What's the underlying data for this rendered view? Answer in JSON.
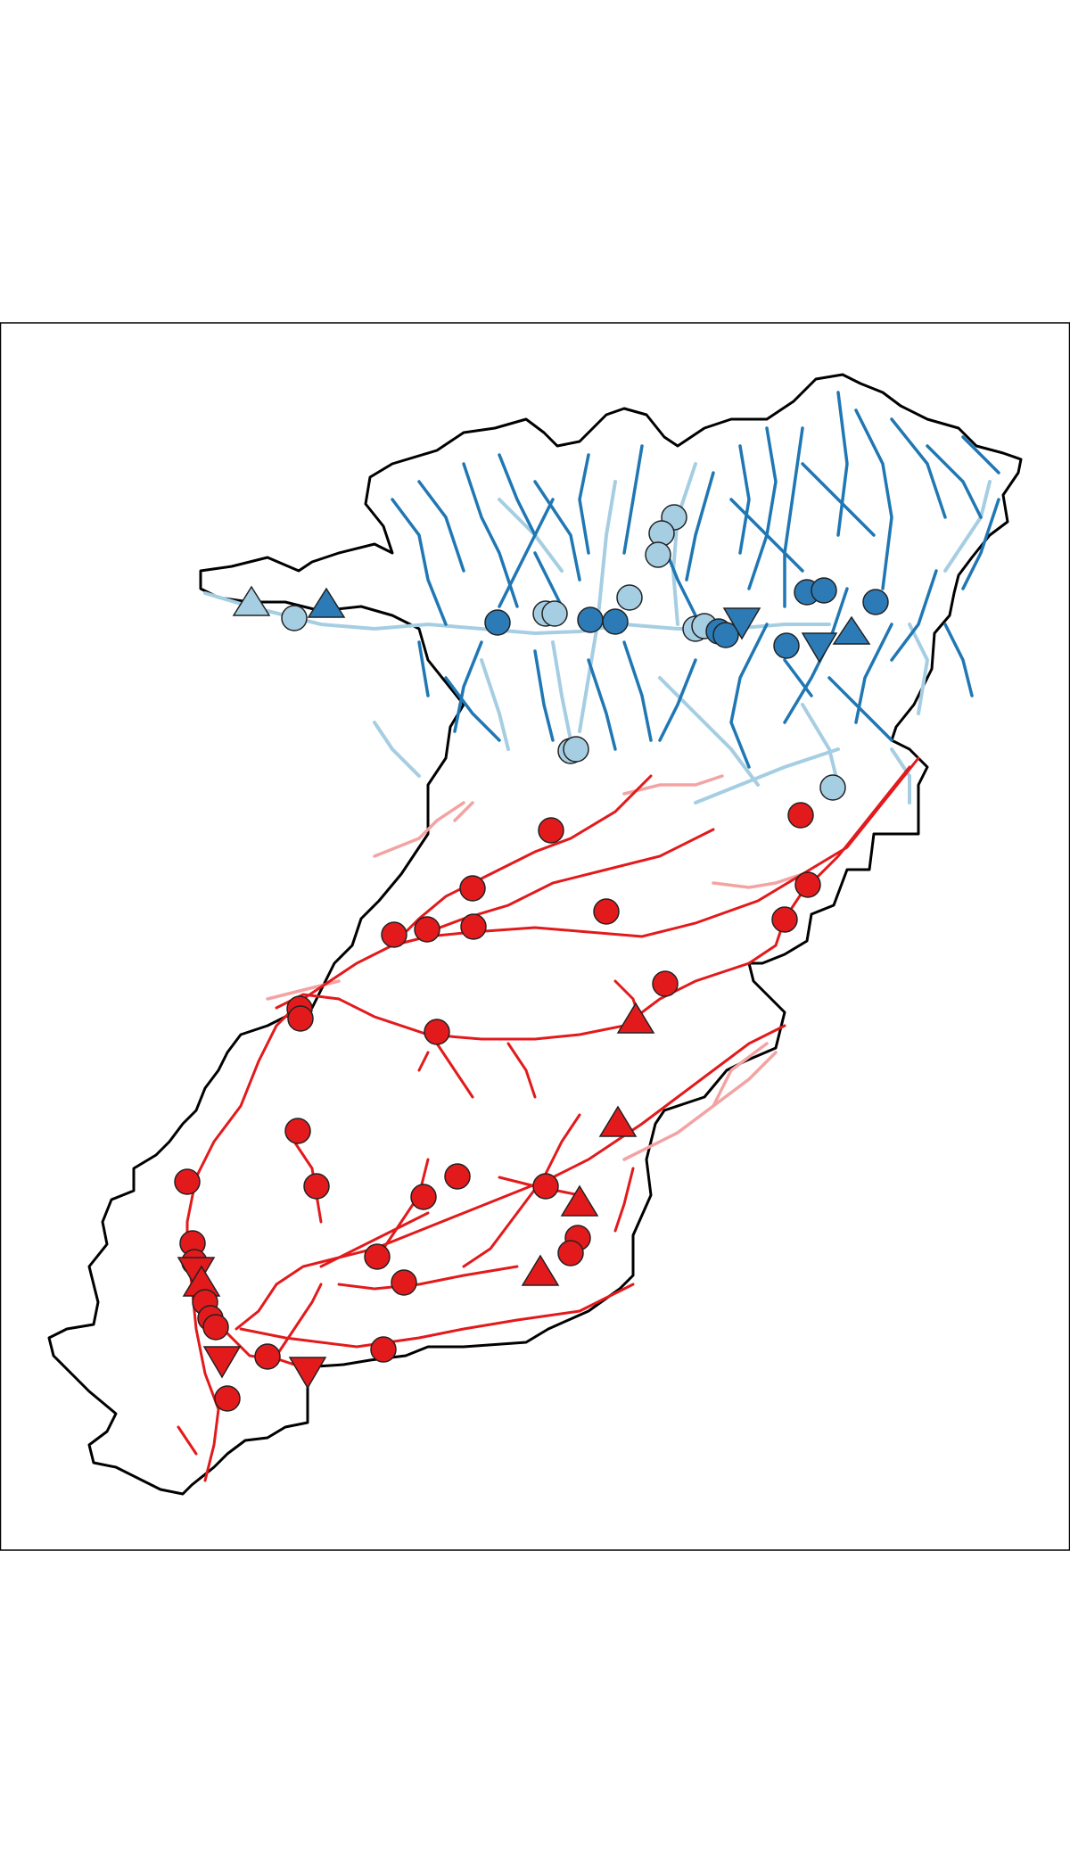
{
  "map": {
    "colors": {
      "background": "#ffffff",
      "frame": "#000000",
      "boundary": "#000000",
      "upper_stream_dark": "#1f77b4",
      "upper_stream_light": "#a6cee3",
      "lower_stream_dark": "#e31a1c",
      "lower_stream_light": "#f4a3a3",
      "marker_dark_blue": "#2c7bb6",
      "marker_light_blue": "#a6cee3",
      "marker_red": "#e31a1c"
    },
    "marker_symbols": [
      "circle",
      "triangle-up",
      "triangle-down"
    ],
    "regions": [
      "upper-basin",
      "lower-basin"
    ]
  }
}
